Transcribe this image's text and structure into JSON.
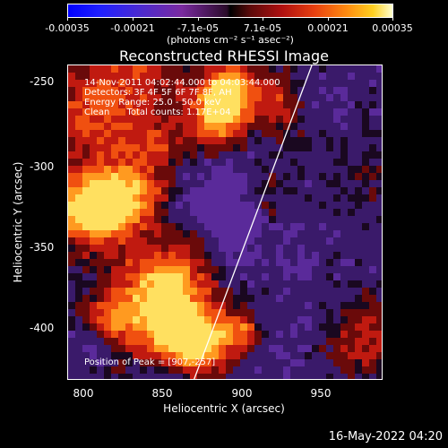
{
  "colorbar": {
    "ticks": [
      "-0.00035",
      "-0.00021",
      "-7.1e-05",
      "7.1e-05",
      "0.00021",
      "0.00035"
    ],
    "units": "(photons cm⁻² s⁻¹ asec⁻²)"
  },
  "title": "Reconstructed RHESSI Image",
  "info": {
    "time": "14-Nov-2011 04:02:44.000 to 04:03:44.000",
    "detectors": "Detectors: 3F 4F 5F 6F 7F 8F, AH",
    "energy": "Energy Range: 25.0 - 50.0 keV",
    "clean": "Clean      Total counts: 1.17E+04",
    "peak": "Position of Peak = [907,-257]"
  },
  "axes": {
    "xlabel": "Heliocentric X (arcsec)",
    "ylabel": "Heliocentric Y (arcsec)",
    "xticks": [
      "800",
      "850",
      "900",
      "950"
    ],
    "yticks": [
      "-250",
      "-300",
      "-350",
      "-400"
    ]
  },
  "footer": "16-May-2022 04:20"
}
